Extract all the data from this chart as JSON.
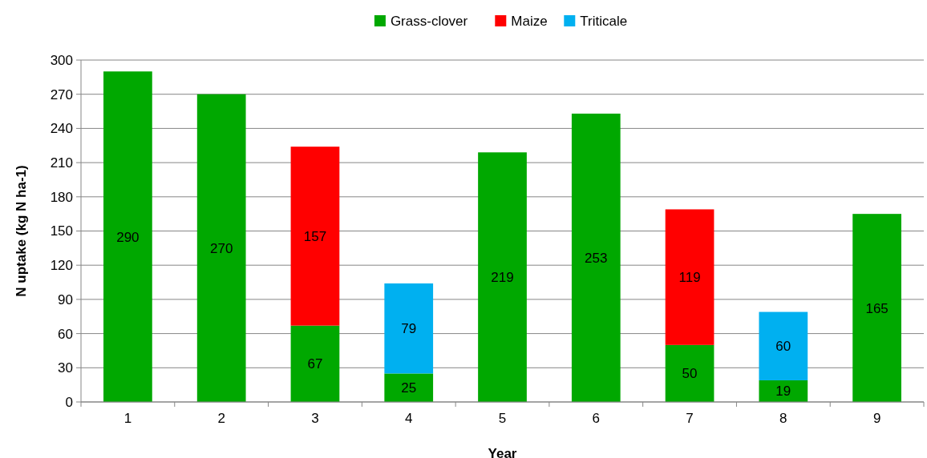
{
  "chart_data": {
    "type": "bar",
    "stacked": true,
    "xlabel": "Year",
    "ylabel": "N uptake (kg N ha-1)",
    "categories": [
      "1",
      "2",
      "3",
      "4",
      "5",
      "6",
      "7",
      "8",
      "9"
    ],
    "series": [
      {
        "name": "Grass-clover",
        "color": "#00a800",
        "values": [
          290,
          270,
          67,
          25,
          219,
          253,
          50,
          19,
          165
        ]
      },
      {
        "name": "Maize",
        "color": "#ff0000",
        "values": [
          null,
          null,
          157,
          null,
          null,
          null,
          119,
          null,
          null
        ]
      },
      {
        "name": "Triticale",
        "color": "#00b0f0",
        "values": [
          null,
          null,
          null,
          79,
          null,
          null,
          null,
          60,
          null
        ]
      }
    ],
    "ylim": [
      0,
      300
    ],
    "yticks": [
      0,
      30,
      60,
      90,
      120,
      150,
      180,
      210,
      240,
      270,
      300
    ],
    "grid": "y",
    "legend": "top",
    "data_labels": true
  }
}
